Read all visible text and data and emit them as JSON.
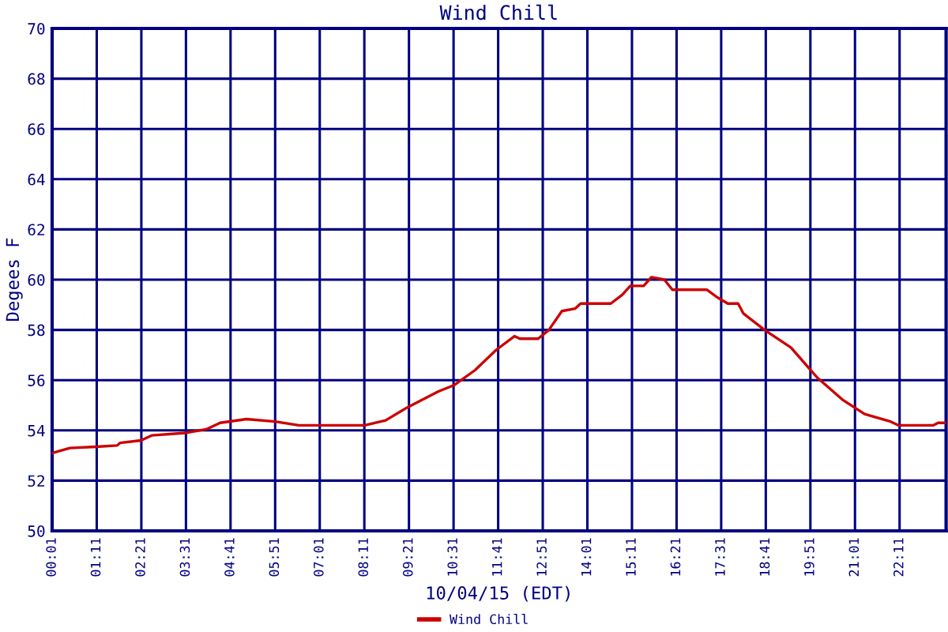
{
  "chart_data": {
    "type": "line",
    "title": "Wind Chill",
    "xlabel": "10/04/15 (EDT)",
    "ylabel": "Degees F",
    "ylim": [
      50,
      70
    ],
    "yticks": [
      50,
      52,
      54,
      56,
      58,
      60,
      62,
      64,
      66,
      68,
      70
    ],
    "xlim": [
      0.0167,
      23.4
    ],
    "xticks": [
      {
        "value": 0.0167,
        "label": "00:01"
      },
      {
        "value": 1.1833,
        "label": "01:11"
      },
      {
        "value": 2.35,
        "label": "02:21"
      },
      {
        "value": 3.5167,
        "label": "03:31"
      },
      {
        "value": 4.6833,
        "label": "04:41"
      },
      {
        "value": 5.85,
        "label": "05:51"
      },
      {
        "value": 7.0167,
        "label": "07:01"
      },
      {
        "value": 8.1833,
        "label": "08:11"
      },
      {
        "value": 9.35,
        "label": "09:21"
      },
      {
        "value": 10.5167,
        "label": "10:31"
      },
      {
        "value": 11.6833,
        "label": "11:41"
      },
      {
        "value": 12.85,
        "label": "12:51"
      },
      {
        "value": 14.0167,
        "label": "14:01"
      },
      {
        "value": 15.1833,
        "label": "15:11"
      },
      {
        "value": 16.35,
        "label": "16:21"
      },
      {
        "value": 17.5167,
        "label": "17:31"
      },
      {
        "value": 18.6833,
        "label": "18:41"
      },
      {
        "value": 19.85,
        "label": "19:51"
      },
      {
        "value": 21.0167,
        "label": "21:01"
      },
      {
        "value": 22.1833,
        "label": "22:11"
      },
      {
        "value": 23.4,
        "label": null
      }
    ],
    "grid": true,
    "legend": "bottom",
    "marker": "none",
    "line_style": "solid",
    "x": [
      0.02,
      0.48,
      1.17,
      1.72,
      1.79,
      2.34,
      2.62,
      3.51,
      4.06,
      4.41,
      5.1,
      5.85,
      6.47,
      8.19,
      8.74,
      9.29,
      10.12,
      10.53,
      11.08,
      11.63,
      12.11,
      12.25,
      12.73,
      13.01,
      13.35,
      13.7,
      13.84,
      14.63,
      14.93,
      15.14,
      15.49,
      15.69,
      16.03,
      16.24,
      16.72,
      17.14,
      17.41,
      17.69,
      17.96,
      18.1,
      18.65,
      19.34,
      20.03,
      20.71,
      21.27,
      21.95,
      22.16,
      23.06,
      23.19,
      23.4
    ],
    "series": [
      {
        "name": "Wind Chill",
        "color": "#cc0000",
        "values": [
          53.1,
          53.3,
          53.35,
          53.4,
          53.5,
          53.6,
          53.8,
          53.9,
          54.05,
          54.3,
          54.45,
          54.35,
          54.2,
          54.2,
          54.4,
          54.9,
          55.55,
          55.8,
          56.4,
          57.2,
          57.75,
          57.65,
          57.65,
          58.0,
          58.75,
          58.85,
          59.05,
          59.05,
          59.4,
          59.75,
          59.75,
          60.1,
          60.0,
          59.6,
          59.6,
          59.6,
          59.3,
          59.05,
          59.05,
          58.65,
          58.0,
          57.3,
          56.1,
          55.2,
          54.65,
          54.35,
          54.2,
          54.2,
          54.3,
          54.3
        ]
      }
    ]
  }
}
